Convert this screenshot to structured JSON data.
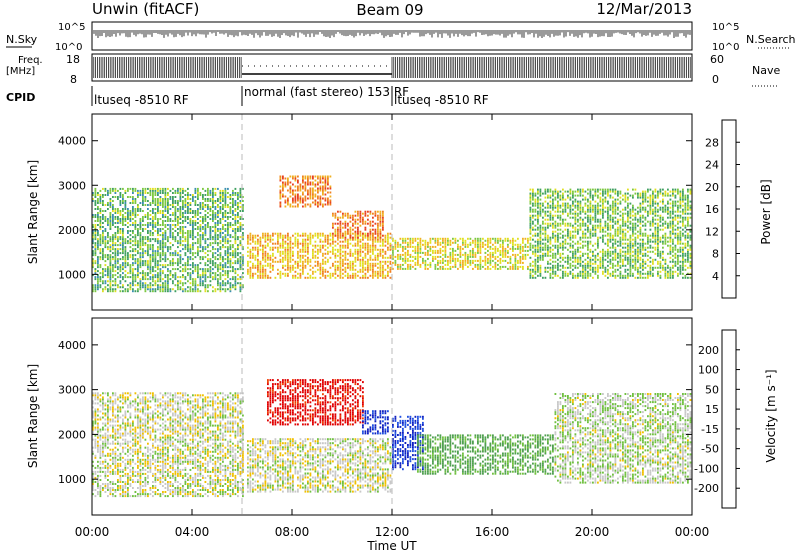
{
  "header": {
    "station": "Unwin (fitACF)",
    "beam": "Beam 09",
    "date": "12/Mar/2013"
  },
  "summary_panel": {
    "nsky_label": "N.Sky",
    "nsky_ticks": [
      "10^5",
      "10^0"
    ],
    "nsearch_label": "N.Search",
    "nsearch_ticks": [
      "10^5",
      "10^0"
    ],
    "freq_label_line1": "Freq.",
    "freq_label_line2": "[MHz]",
    "freq_ticks": [
      "18",
      "8"
    ],
    "nave_label": "Nave",
    "nave_ticks": [
      "60",
      "0"
    ],
    "cpid_label": "CPID",
    "cpid_segments": [
      {
        "label": "ltuseq -8510 RF",
        "start_hour": 0,
        "end_hour": 6
      },
      {
        "label": "normal (fast stereo) 153 RF",
        "start_hour": 6,
        "end_hour": 12
      },
      {
        "label": "ltuseq -8510 RF",
        "start_hour": 12,
        "end_hour": 24
      }
    ]
  },
  "chart_data": [
    {
      "type": "heatmap",
      "name": "power",
      "ylabel": "Slant Range [km]",
      "ylim": [
        200,
        4600
      ],
      "yticks": [
        "1000",
        "2000",
        "3000",
        "4000"
      ],
      "ytick_values": [
        1000,
        2000,
        3000,
        4000
      ],
      "xlim": [
        0,
        24
      ],
      "colorbar": {
        "label": "Power [dB]",
        "ticks": [
          "4",
          "8",
          "12",
          "16",
          "20",
          "24",
          "28"
        ],
        "colors": [
          "#1030e0",
          "#2a64d0",
          "#3b8fb0",
          "#3fa060",
          "#7cc840",
          "#e0e020",
          "#f0b020",
          "#f08020",
          "#e84020",
          "#e00000"
        ]
      },
      "regions": [
        {
          "t": [
            0.0,
            6.0
          ],
          "r": [
            600,
            2900
          ],
          "level": 12
        },
        {
          "t": [
            6.2,
            11.9
          ],
          "r": [
            900,
            1900
          ],
          "level": 19
        },
        {
          "t": [
            7.5,
            9.5
          ],
          "r": [
            2500,
            3200
          ],
          "level": 22
        },
        {
          "t": [
            9.6,
            11.6
          ],
          "r": [
            1800,
            2400
          ],
          "level": 23
        },
        {
          "t": [
            12.0,
            17.5
          ],
          "r": [
            1100,
            1800
          ],
          "level": 17
        },
        {
          "t": [
            17.5,
            24.0
          ],
          "r": [
            900,
            2900
          ],
          "level": 13
        }
      ]
    },
    {
      "type": "heatmap",
      "name": "velocity",
      "ylabel": "Slant Range [km]",
      "ylim": [
        200,
        4600
      ],
      "yticks": [
        "1000",
        "2000",
        "3000",
        "4000"
      ],
      "ytick_values": [
        1000,
        2000,
        3000,
        4000
      ],
      "xlim": [
        0,
        24
      ],
      "xticks": [
        "00:00",
        "04:00",
        "08:00",
        "12:00",
        "16:00",
        "20:00",
        "00:00"
      ],
      "xtick_values": [
        0,
        4,
        8,
        12,
        16,
        20,
        24
      ],
      "xlabel": "Time UT",
      "colorbar": {
        "label": "Velocity [m s⁻¹]",
        "ticks": [
          "200",
          "100",
          "50",
          "15",
          "-15",
          "-50",
          "-100",
          "-200"
        ],
        "colors": [
          "#1020c0",
          "#2050e0",
          "#50a050",
          "#70c040",
          "#c8c8c8",
          "#c8c8c8",
          "#f0c000",
          "#f08000",
          "#f04000",
          "#e00000"
        ]
      },
      "regions": [
        {
          "t": [
            0.0,
            6.0
          ],
          "r": [
            600,
            2900
          ],
          "level": 0
        },
        {
          "t": [
            6.2,
            11.9
          ],
          "r": [
            700,
            1900
          ],
          "level": 0
        },
        {
          "t": [
            7.0,
            10.8
          ],
          "r": [
            2200,
            3200
          ],
          "level": -220
        },
        {
          "t": [
            10.8,
            11.8
          ],
          "r": [
            2000,
            2500
          ],
          "level": 210
        },
        {
          "t": [
            12.0,
            13.2
          ],
          "r": [
            1200,
            2400
          ],
          "level": 200
        },
        {
          "t": [
            13.0,
            18.5
          ],
          "r": [
            1100,
            2000
          ],
          "level": 60
        },
        {
          "t": [
            18.5,
            24.0
          ],
          "r": [
            900,
            2900
          ],
          "level": 10
        }
      ]
    }
  ]
}
